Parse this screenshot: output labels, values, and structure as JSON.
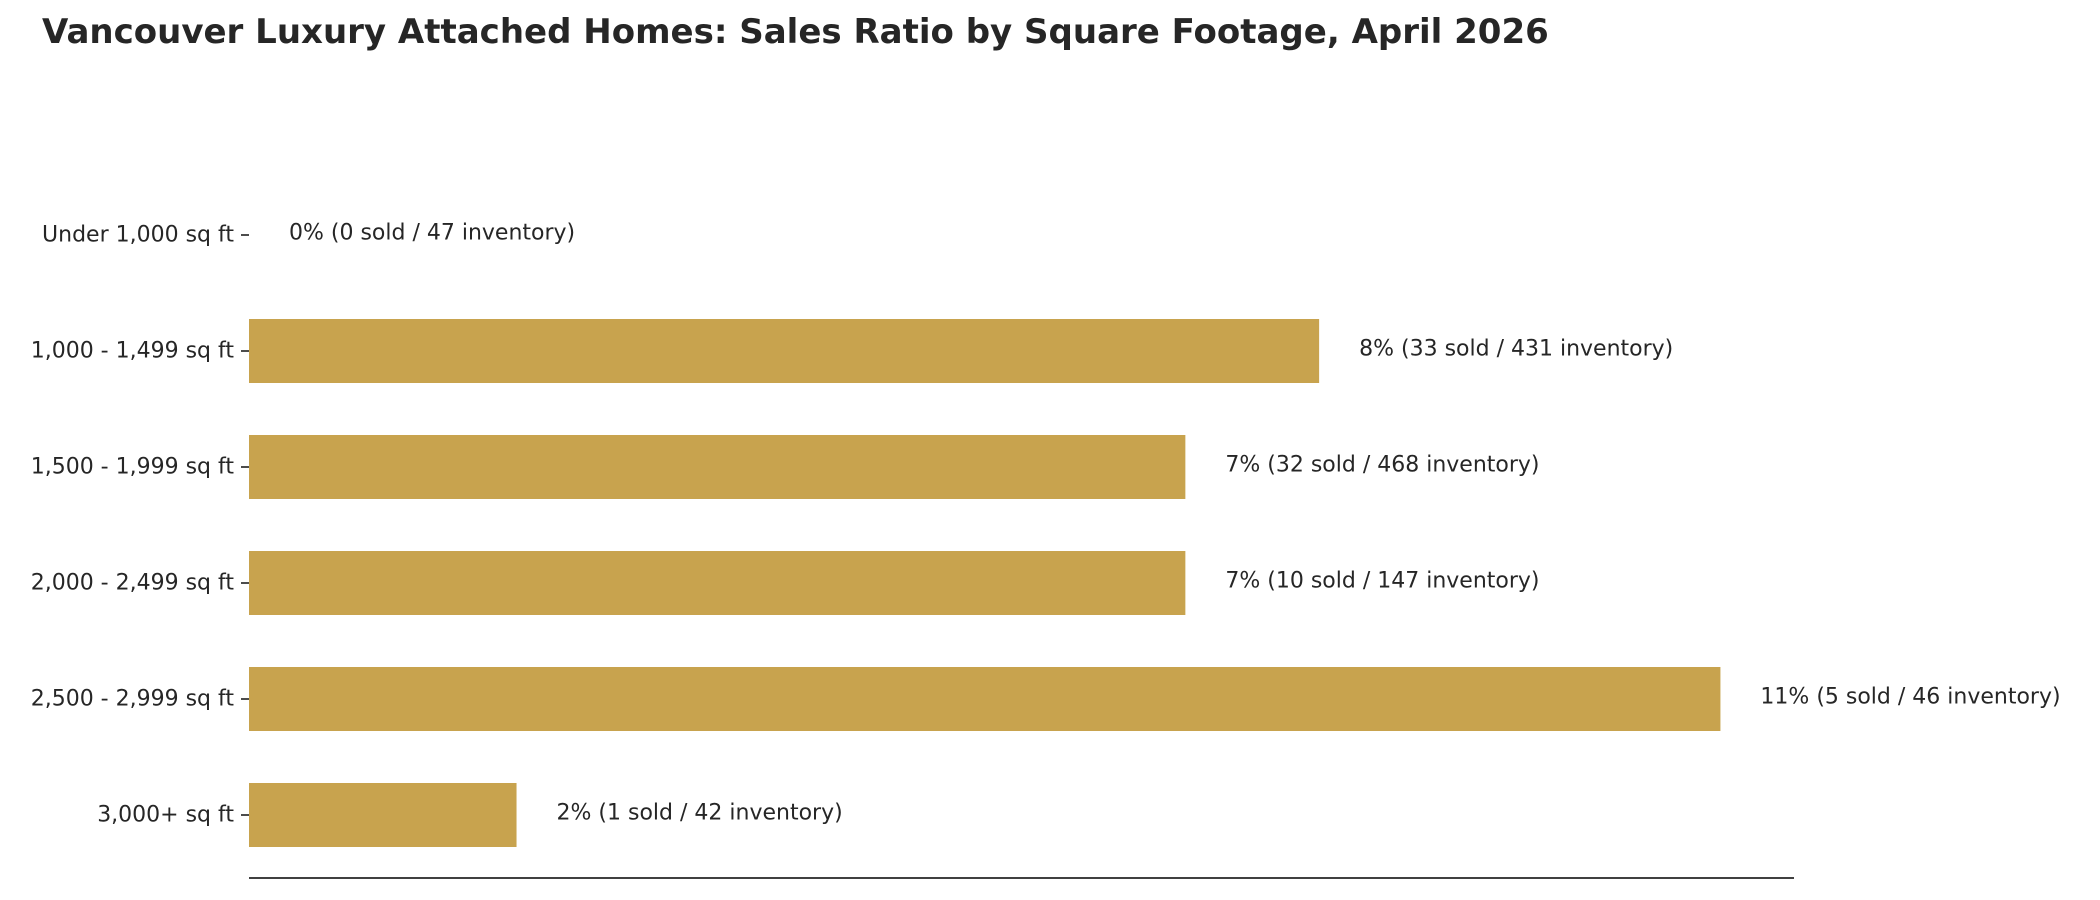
{
  "chart_data": {
    "type": "bar",
    "orientation": "horizontal",
    "title": "Vancouver Luxury Attached Homes: Sales Ratio by Square Footage, April 2026",
    "xlabel": "",
    "ylabel": "",
    "categories": [
      "Under 1,000 sq ft",
      "1,000 - 1,499 sq ft",
      "1,500 - 1,999 sq ft",
      "2,000 - 2,499 sq ft",
      "2,500 - 2,999 sq ft",
      "3,000+ sq ft"
    ],
    "values": [
      0,
      8,
      7,
      7,
      11,
      2
    ],
    "sold": [
      0,
      33,
      32,
      10,
      5,
      1
    ],
    "inventory": [
      47,
      431,
      468,
      147,
      46,
      42
    ],
    "data_labels": [
      "0%  (0 sold / 47 inventory)",
      "8%  (33 sold / 431 inventory)",
      "7%  (32 sold / 468 inventory)",
      "7%  (10 sold / 147 inventory)",
      "11%  (5 sold / 46 inventory)",
      "2%  (1 sold / 42 inventory)"
    ],
    "value_unit": "%",
    "xlim": [
      0,
      11.55
    ],
    "grid": false,
    "legend": "none",
    "bar_color": "#C8A34E",
    "axis_color": "#000000",
    "text_color": "#262626"
  }
}
